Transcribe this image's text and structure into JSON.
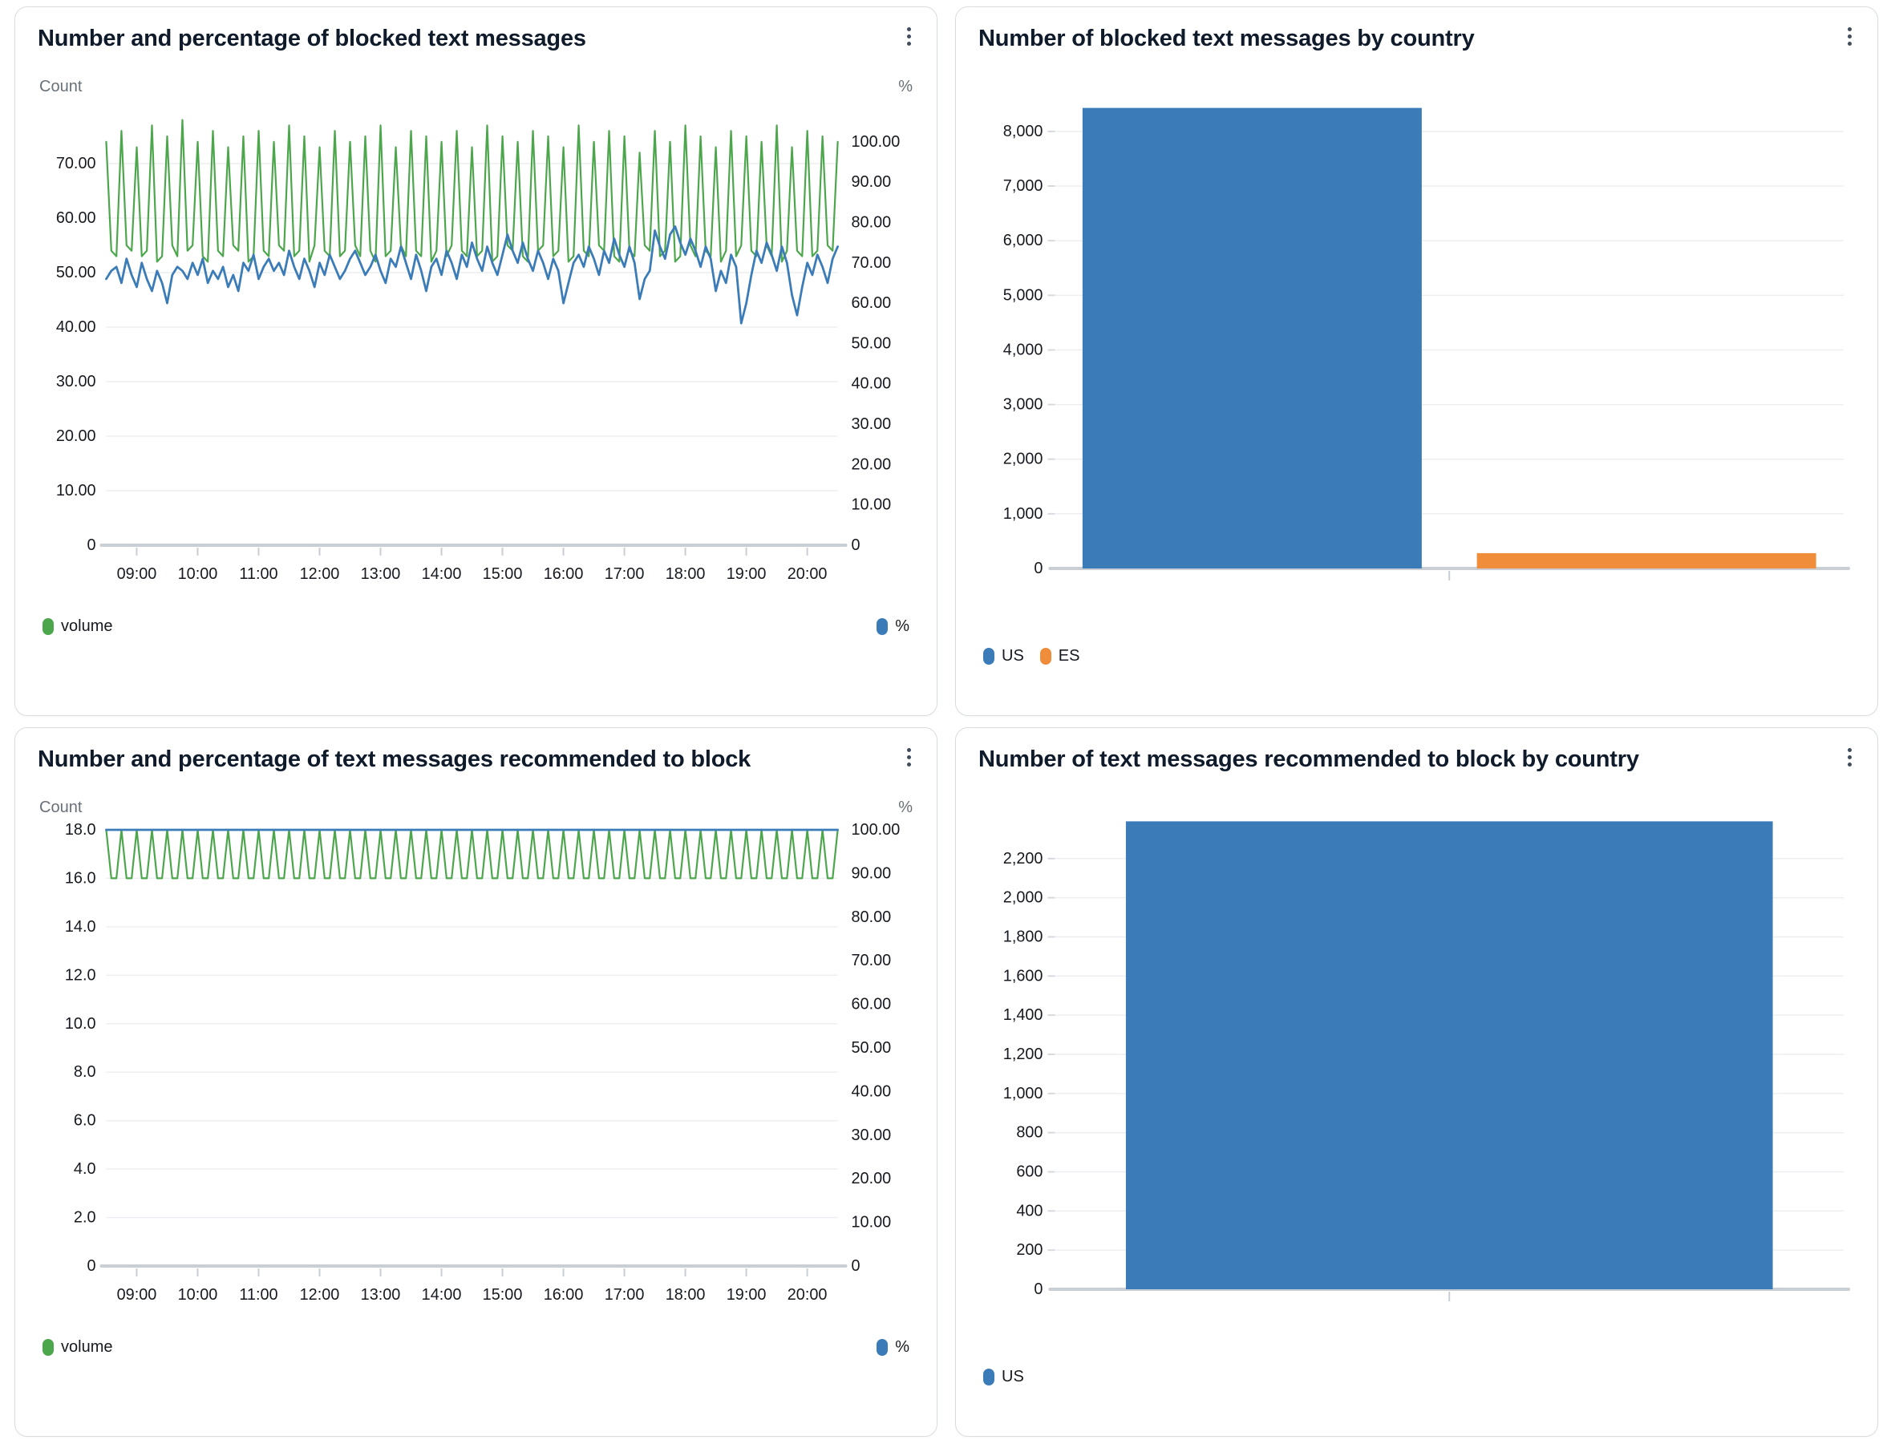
{
  "page": {
    "background": "#ffffff",
    "accent_blue": "#3B7CB8",
    "accent_orange": "#EF8D3A",
    "accent_green": "#4CA64C"
  },
  "chart_data": [
    {
      "id": "blocked-count-pct",
      "type": "line",
      "title": "Number and percentage of blocked text messages",
      "legend_position": "bottom-split",
      "grid": "horizontal",
      "left_axis": {
        "label": "Count",
        "max": 80,
        "ticks": [
          0,
          10,
          20,
          30,
          40,
          50,
          60,
          70
        ],
        "tick_labels": [
          "0",
          "10.00",
          "20.00",
          "30.00",
          "40.00",
          "50.00",
          "60.00",
          "70.00"
        ]
      },
      "right_axis": {
        "label": "%",
        "max": 100,
        "top_left_equiv": 74,
        "ticks": [
          0,
          10,
          20,
          30,
          40,
          50,
          60,
          70,
          80,
          90,
          100
        ],
        "tick_labels": [
          "0",
          "10.00",
          "20.00",
          "30.00",
          "40.00",
          "50.00",
          "60.00",
          "70.00",
          "80.00",
          "90.00",
          "100.00"
        ]
      },
      "x_axis": {
        "start_hour": 8.5,
        "end_hour": 20.5,
        "interval_minutes": 5,
        "tick_hours": [
          9,
          10,
          11,
          12,
          13,
          14,
          15,
          16,
          17,
          18,
          19,
          20
        ],
        "tick_labels": [
          "09:00",
          "10:00",
          "11:00",
          "12:00",
          "13:00",
          "14:00",
          "15:00",
          "16:00",
          "17:00",
          "18:00",
          "19:00",
          "20:00"
        ]
      },
      "series": [
        {
          "name": "volume",
          "axis": "left",
          "color": "#4CA64C",
          "values": [
            74,
            54,
            53,
            76,
            55,
            54,
            73,
            53,
            54,
            77,
            52,
            53,
            75,
            55,
            53,
            78,
            54,
            55,
            74,
            53,
            52,
            76,
            54,
            53,
            73,
            55,
            54,
            75,
            52,
            53,
            76,
            54,
            53,
            74,
            55,
            54,
            77,
            53,
            54,
            75,
            52,
            55,
            73,
            54,
            53,
            76,
            53,
            54,
            74,
            55,
            53,
            75,
            54,
            52,
            77,
            53,
            54,
            73,
            55,
            53,
            76,
            54,
            53,
            75,
            52,
            54,
            74,
            53,
            55,
            76,
            54,
            53,
            73,
            53,
            54,
            77,
            52,
            53,
            75,
            55,
            54,
            74,
            53,
            52,
            76,
            54,
            55,
            75,
            53,
            54,
            73,
            52,
            53,
            77,
            54,
            53,
            74,
            55,
            54,
            76,
            53,
            52,
            75,
            54,
            53,
            72,
            55,
            54,
            76,
            53,
            54,
            74,
            52,
            53,
            77,
            55,
            53,
            75,
            54,
            53,
            73,
            52,
            54,
            76,
            53,
            55,
            75,
            54,
            53,
            74,
            55,
            53,
            77,
            52,
            54,
            73,
            54,
            53,
            76,
            53,
            54,
            75,
            55,
            54,
            74
          ]
        },
        {
          "name": "%",
          "axis": "right",
          "color": "#3B7CB8",
          "values": [
            66,
            68,
            69,
            65,
            71,
            67,
            64,
            70,
            66,
            63,
            68,
            65,
            60,
            67,
            69,
            68,
            66,
            70,
            67,
            71,
            65,
            68,
            66,
            69,
            64,
            67,
            63,
            70,
            68,
            72,
            66,
            69,
            71,
            68,
            70,
            67,
            73,
            69,
            66,
            71,
            68,
            64,
            70,
            67,
            72,
            69,
            66,
            68,
            71,
            73,
            70,
            67,
            69,
            72,
            68,
            65,
            71,
            69,
            74,
            70,
            66,
            72,
            68,
            63,
            69,
            71,
            67,
            73,
            70,
            66,
            72,
            69,
            75,
            71,
            68,
            74,
            70,
            67,
            72,
            77,
            73,
            70,
            75,
            71,
            68,
            73,
            70,
            66,
            71,
            68,
            60,
            65,
            70,
            72,
            69,
            74,
            71,
            67,
            73,
            70,
            76,
            72,
            69,
            74,
            70,
            61,
            66,
            68,
            78,
            74,
            71,
            77,
            79,
            75,
            72,
            76,
            73,
            69,
            74,
            71,
            63,
            68,
            65,
            72,
            69,
            55,
            60,
            67,
            73,
            70,
            75,
            72,
            68,
            74,
            70,
            62,
            57,
            64,
            70,
            67,
            72,
            69,
            65,
            71,
            74
          ]
        }
      ]
    },
    {
      "id": "blocked-by-country",
      "type": "bar",
      "title": "Number of blocked text messages by country",
      "grid": "horizontal",
      "y_axis": {
        "max": 8600,
        "ticks": [
          0,
          1000,
          2000,
          3000,
          4000,
          5000,
          6000,
          7000,
          8000
        ],
        "tick_labels": [
          "0",
          "1,000",
          "2,000",
          "3,000",
          "4,000",
          "5,000",
          "6,000",
          "7,000",
          "8,000"
        ]
      },
      "categories": [
        "US",
        "ES"
      ],
      "values": [
        8430,
        280
      ],
      "colors": [
        "#3B7CB8",
        "#EF8D3A"
      ],
      "bar_band_fraction": 0.86,
      "legend": [
        {
          "label": "US",
          "color": "#3B7CB8"
        },
        {
          "label": "ES",
          "color": "#EF8D3A"
        }
      ]
    },
    {
      "id": "recommended-count-pct",
      "type": "line",
      "title": "Number and percentage of text messages recommended to block",
      "legend_position": "bottom-split",
      "grid": "horizontal",
      "left_axis": {
        "label": "Count",
        "max": 18,
        "ticks": [
          0,
          2,
          4,
          6,
          8,
          10,
          12,
          14,
          16,
          18
        ],
        "tick_labels": [
          "0",
          "2.0",
          "4.0",
          "6.0",
          "8.0",
          "10.0",
          "12.0",
          "14.0",
          "16.0",
          "18.0"
        ]
      },
      "right_axis": {
        "label": "%",
        "max": 100,
        "top_left_equiv": 18,
        "ticks": [
          0,
          10,
          20,
          30,
          40,
          50,
          60,
          70,
          80,
          90,
          100
        ],
        "tick_labels": [
          "0",
          "10.00",
          "20.00",
          "30.00",
          "40.00",
          "50.00",
          "60.00",
          "70.00",
          "80.00",
          "90.00",
          "100.00"
        ]
      },
      "x_axis": {
        "start_hour": 8.5,
        "end_hour": 20.5,
        "interval_minutes": 5,
        "tick_hours": [
          9,
          10,
          11,
          12,
          13,
          14,
          15,
          16,
          17,
          18,
          19,
          20
        ],
        "tick_labels": [
          "09:00",
          "10:00",
          "11:00",
          "12:00",
          "13:00",
          "14:00",
          "15:00",
          "16:00",
          "17:00",
          "18:00",
          "19:00",
          "20:00"
        ]
      },
      "series": [
        {
          "name": "volume",
          "axis": "left",
          "color": "#4CA64C",
          "values": [
            18,
            16,
            16,
            18,
            16,
            16,
            18,
            16,
            16,
            18,
            16,
            16,
            18,
            16,
            16,
            18,
            16,
            16,
            18,
            16,
            16,
            18,
            16,
            16,
            18,
            16,
            16,
            18,
            16,
            16,
            18,
            16,
            16,
            18,
            16,
            16,
            18,
            16,
            16,
            18,
            16,
            16,
            18,
            16,
            16,
            18,
            16,
            16,
            18,
            16,
            16,
            18,
            16,
            16,
            18,
            16,
            16,
            18,
            16,
            16,
            18,
            16,
            16,
            18,
            16,
            16,
            18,
            16,
            16,
            18,
            16,
            16,
            18,
            16,
            16,
            18,
            16,
            16,
            18,
            16,
            16,
            18,
            16,
            16,
            18,
            16,
            16,
            18,
            16,
            16,
            18,
            16,
            16,
            18,
            16,
            16,
            18,
            16,
            16,
            18,
            16,
            16,
            18,
            16,
            16,
            18,
            16,
            16,
            18,
            16,
            16,
            18,
            16,
            16,
            18,
            16,
            16,
            18,
            16,
            16,
            18,
            16,
            16,
            18,
            16,
            16,
            18,
            16,
            16,
            18,
            16,
            16,
            18,
            16,
            16,
            18,
            16,
            16,
            18,
            16,
            16,
            18,
            16,
            16,
            18
          ]
        },
        {
          "name": "%",
          "axis": "right",
          "color": "#3B7CB8",
          "values": [
            100,
            100,
            100,
            100,
            100,
            100,
            100,
            100,
            100,
            100,
            100,
            100,
            100,
            100,
            100,
            100,
            100,
            100,
            100,
            100,
            100,
            100,
            100,
            100,
            100,
            100,
            100,
            100,
            100,
            100,
            100,
            100,
            100,
            100,
            100,
            100,
            100,
            100,
            100,
            100,
            100,
            100,
            100,
            100,
            100,
            100,
            100,
            100,
            100,
            100,
            100,
            100,
            100,
            100,
            100,
            100,
            100,
            100,
            100,
            100,
            100,
            100,
            100,
            100,
            100,
            100,
            100,
            100,
            100,
            100,
            100,
            100,
            100,
            100,
            100,
            100,
            100,
            100,
            100,
            100,
            100,
            100,
            100,
            100,
            100,
            100,
            100,
            100,
            100,
            100,
            100,
            100,
            100,
            100,
            100,
            100,
            100,
            100,
            100,
            100,
            100,
            100,
            100,
            100,
            100,
            100,
            100,
            100,
            100,
            100,
            100,
            100,
            100,
            100,
            100,
            100,
            100,
            100,
            100,
            100,
            100,
            100,
            100,
            100,
            100,
            100,
            100,
            100,
            100,
            100,
            100,
            100,
            100,
            100,
            100,
            100,
            100,
            100,
            100,
            100,
            100,
            100,
            100,
            100,
            100
          ]
        }
      ]
    },
    {
      "id": "recommended-by-country",
      "type": "bar",
      "title": "Number of text messages recommended to block by country",
      "grid": "horizontal",
      "y_axis": {
        "max": 2400,
        "ticks": [
          0,
          200,
          400,
          600,
          800,
          1000,
          1200,
          1400,
          1600,
          1800,
          2000,
          2200
        ],
        "tick_labels": [
          "0",
          "200",
          "400",
          "600",
          "800",
          "1,000",
          "1,200",
          "1,400",
          "1,600",
          "1,800",
          "2,000",
          "2,200"
        ]
      },
      "categories": [
        "US"
      ],
      "values": [
        2390
      ],
      "colors": [
        "#3B7CB8"
      ],
      "bar_band_fraction": 0.82,
      "legend": [
        {
          "label": "US",
          "color": "#3B7CB8"
        }
      ]
    }
  ]
}
